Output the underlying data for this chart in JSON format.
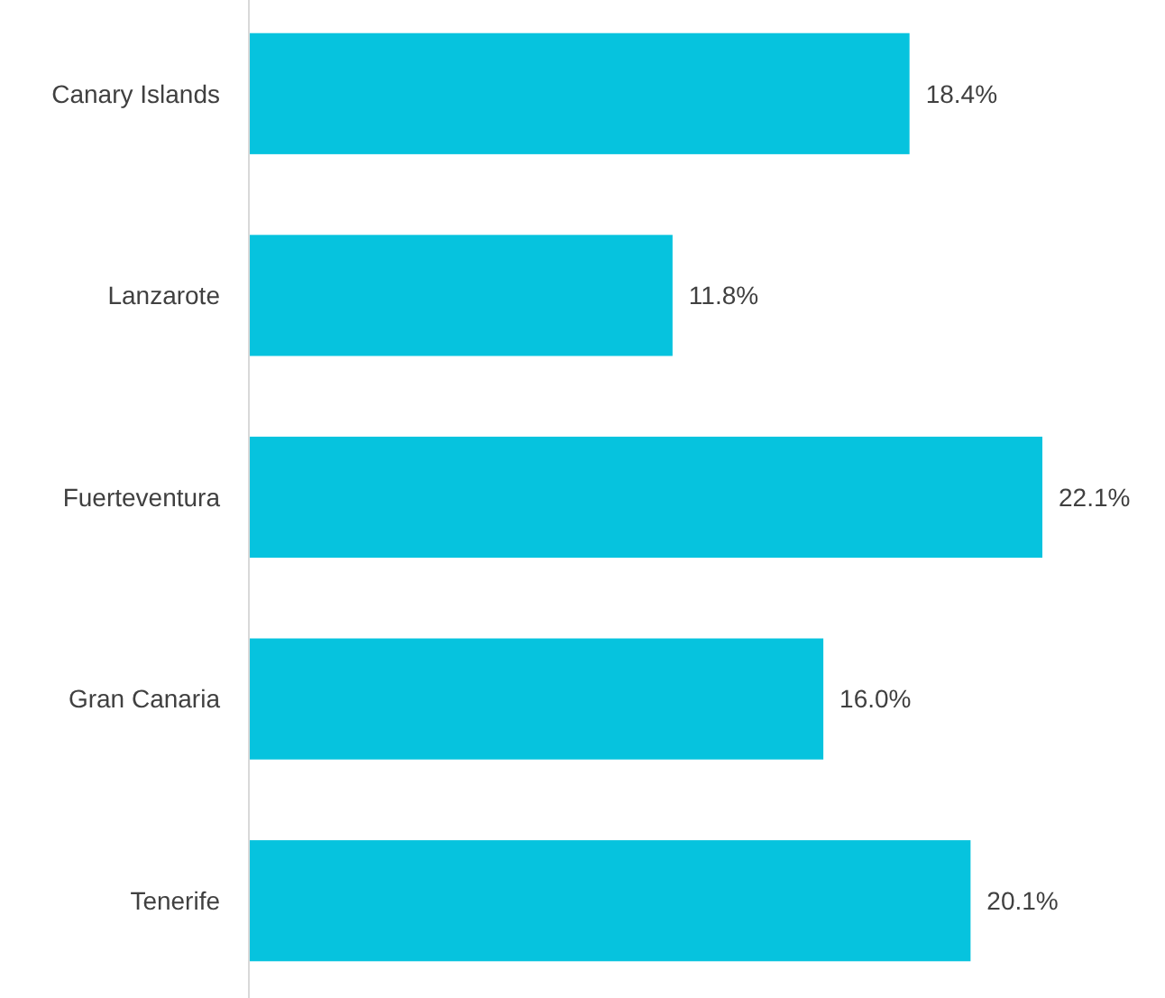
{
  "chart_data": {
    "type": "bar",
    "orientation": "horizontal",
    "categories": [
      "Canary Islands",
      "Lanzarote",
      "Fuerteventura",
      "Gran Canaria",
      "Tenerife"
    ],
    "values": [
      18.4,
      11.8,
      22.1,
      16.0,
      20.1
    ],
    "value_labels": [
      "18.4%",
      "11.8%",
      "22.1%",
      "16.0%",
      "20.1%"
    ],
    "color": "#06c3de"
  }
}
